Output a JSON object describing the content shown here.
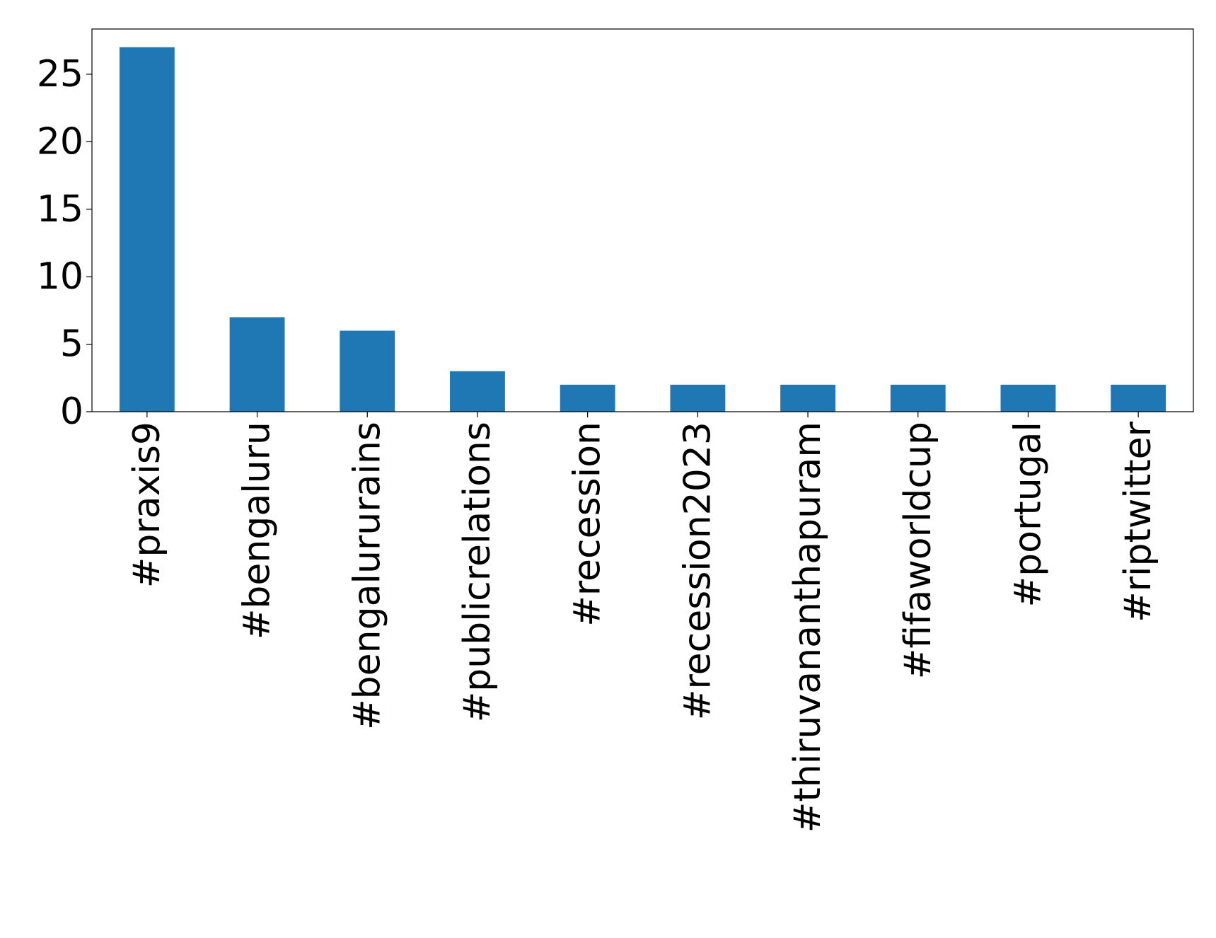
{
  "chart_data": {
    "type": "bar",
    "categories": [
      "#praxis9",
      "#bengaluru",
      "#bengalururains",
      "#publicrelations",
      "#recession",
      "#recession2023",
      "#thiruvananthapuram",
      "#fifaworldcup",
      "#portugal",
      "#riptwitter"
    ],
    "values": [
      27,
      7,
      6,
      3,
      2,
      2,
      2,
      2,
      2,
      2
    ],
    "color": "#1f77b4",
    "ylim": [
      0,
      28.35
    ],
    "yticks": [
      0,
      5,
      10,
      15,
      20,
      25
    ],
    "grid": false
  }
}
